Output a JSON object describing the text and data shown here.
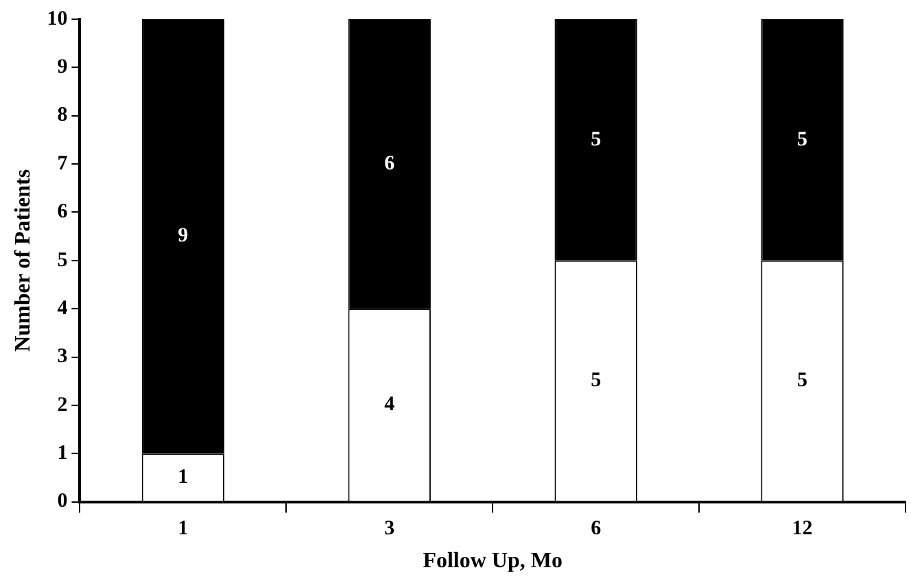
{
  "chart_data": {
    "type": "bar",
    "xlabel": "Follow Up, Mo",
    "ylabel": "Number of Patients",
    "categories": [
      "1",
      "3",
      "6",
      "12"
    ],
    "stacked": true,
    "series": [
      {
        "color": "#ffffff",
        "values": [
          1,
          4,
          5,
          5
        ]
      },
      {
        "color": "#000000",
        "values": [
          9,
          6,
          5,
          5
        ]
      }
    ],
    "ylim": [
      0,
      10
    ],
    "yticks": [
      0,
      1,
      2,
      3,
      4,
      5,
      6,
      7,
      8,
      9,
      10
    ],
    "grid": false,
    "legend": false,
    "data_labels": true
  }
}
